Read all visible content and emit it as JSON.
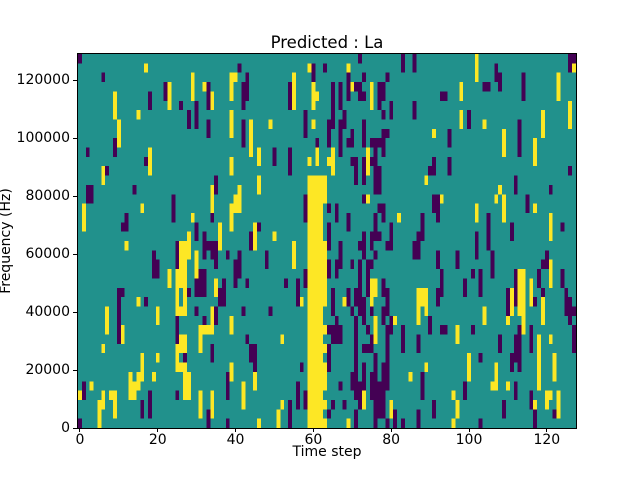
{
  "figure": {
    "title": "Predicted : La",
    "xlabel": "Time step",
    "ylabel": "Frequency (Hz)",
    "background_color": "#ffffff",
    "frame_color": "#000000"
  },
  "chart_data": {
    "type": "heatmap",
    "title": "Predicted : La",
    "xlabel": "Time step",
    "ylabel": "Frequency (Hz)",
    "x_range": [
      -0.5,
      127.5
    ],
    "y_range": [
      0,
      129000
    ],
    "x_ticks": [
      0,
      20,
      40,
      60,
      80,
      100,
      120
    ],
    "y_ticks": [
      0,
      20000,
      40000,
      60000,
      80000,
      100000,
      120000
    ],
    "grid": {
      "cols": 128,
      "rows": 40
    },
    "legend": "none",
    "values_semantics": "trinary mask: 0=dark, 1=background, 2=active",
    "colormap": {
      "name": "viridis-3-level",
      "low": "#440154",
      "mid": "#21918c",
      "high": "#fde725"
    },
    "background_value": 1,
    "noise": {
      "seed": 7,
      "p_dark": 0.035,
      "p_yellow": 0.025,
      "run_min": 1,
      "run_max": 3
    },
    "features": [
      {
        "name": "solid-yellow-band",
        "cols": [
          59,
          62
        ],
        "rows": [
          0,
          26
        ],
        "p_dark": 0.0,
        "p_yellow": 1.0
      },
      {
        "name": "yellow-band-right-edge",
        "cols": [
          63,
          63
        ],
        "rows": [
          0,
          26
        ],
        "p_dark": 0.08,
        "p_yellow": 0.5
      },
      {
        "name": "yellow-band-sparse-top",
        "cols": [
          59,
          61
        ],
        "rows": [
          27,
          38
        ],
        "p_dark": 0.04,
        "p_yellow": 0.3
      },
      {
        "name": "dark-dense-right-of-band",
        "cols": [
          64,
          79
        ],
        "rows": [
          0,
          39
        ],
        "p_dark": 0.2,
        "p_yellow": 0.03
      },
      {
        "name": "secondary-yellow-band",
        "cols": [
          25,
          27
        ],
        "rows": [
          3,
          19
        ],
        "p_dark": 0.06,
        "p_yellow": 0.55
      },
      {
        "name": "dark-cluster-mid-left",
        "cols": [
          30,
          36
        ],
        "rows": [
          10,
          22
        ],
        "p_dark": 0.25,
        "p_yellow": 0.05
      },
      {
        "name": "bottom-left-yellow-blob",
        "cols": [
          5,
          9
        ],
        "rows": [
          2,
          4
        ],
        "p_dark": 0.02,
        "p_yellow": 0.75
      },
      {
        "name": "bottom-yellow-stripe",
        "cols": [
          0,
          45
        ],
        "rows": [
          4,
          5
        ],
        "p_dark": 0.05,
        "p_yellow": 0.12
      },
      {
        "name": "right-mixed-cluster",
        "cols": [
          110,
          121
        ],
        "rows": [
          7,
          14
        ],
        "p_dark": 0.15,
        "p_yellow": 0.15
      }
    ]
  }
}
